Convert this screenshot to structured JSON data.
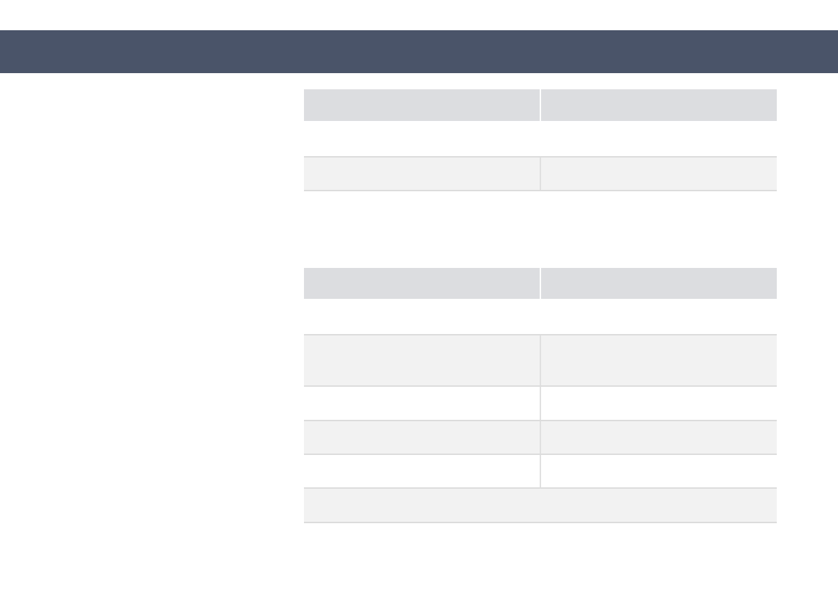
{
  "colors": {
    "header_bar": "#4a5469",
    "table_header": "#dcdde0",
    "row_shaded": "#f2f2f2",
    "row_plain": "#ffffff"
  },
  "table1": {
    "header": [
      "",
      ""
    ],
    "rows": [
      [
        "",
        ""
      ]
    ]
  },
  "table2": {
    "header": [
      "",
      ""
    ],
    "rows": [
      [
        "",
        ""
      ],
      [
        "",
        ""
      ],
      [
        "",
        ""
      ],
      [
        "",
        ""
      ]
    ],
    "footer": ""
  }
}
